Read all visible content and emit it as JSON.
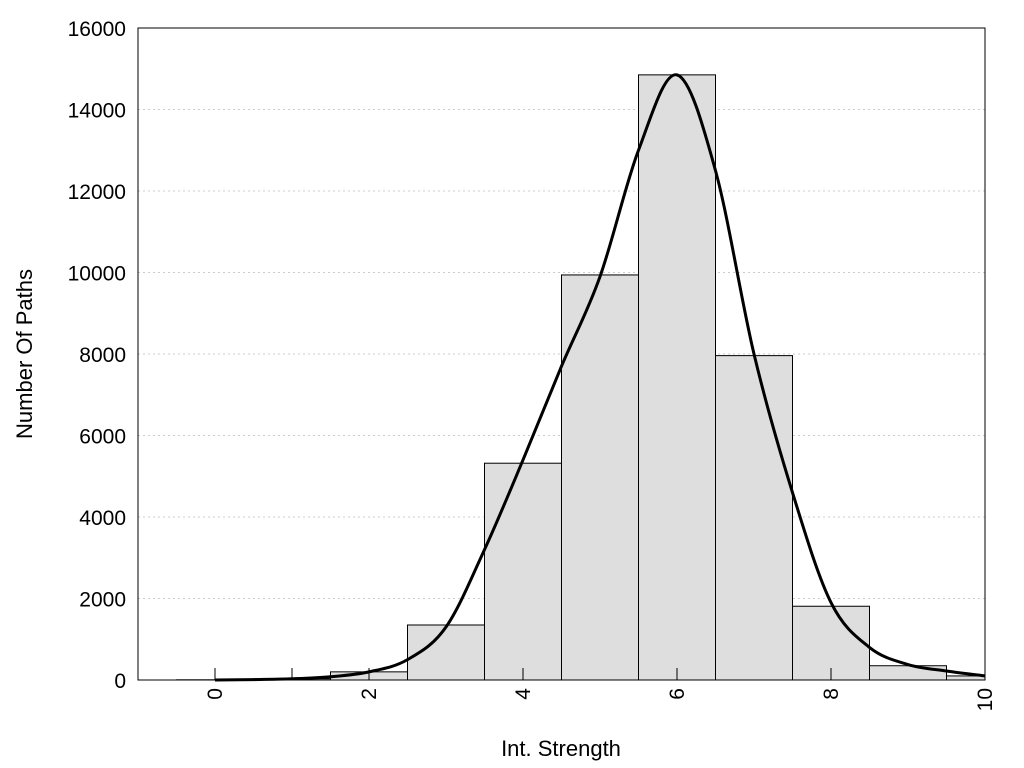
{
  "chart_data": {
    "type": "bar",
    "title": "",
    "xlabel": "Int. Strength",
    "ylabel": "Number Of Paths",
    "xlim": [
      -1,
      10
    ],
    "ylim": [
      0,
      16000
    ],
    "xticks": [
      0,
      2,
      4,
      6,
      8,
      10
    ],
    "yticks": [
      0,
      2000,
      4000,
      6000,
      8000,
      10000,
      12000,
      14000,
      16000
    ],
    "grid": "horizontal dotted",
    "legend": "none",
    "bar_width": 1,
    "bins": [
      {
        "x": 0,
        "value": 5
      },
      {
        "x": 1,
        "value": 30
      },
      {
        "x": 2,
        "value": 200
      },
      {
        "x": 3,
        "value": 1350
      },
      {
        "x": 4,
        "value": 5320
      },
      {
        "x": 5,
        "value": 9940
      },
      {
        "x": 6,
        "value": 14850
      },
      {
        "x": 7,
        "value": 7960
      },
      {
        "x": 8,
        "value": 1810
      },
      {
        "x": 9,
        "value": 350
      },
      {
        "x": 10,
        "value": 100
      }
    ],
    "density_curve": [
      [
        0,
        0
      ],
      [
        0.5,
        10
      ],
      [
        1,
        30
      ],
      [
        1.5,
        80
      ],
      [
        2,
        200
      ],
      [
        2.5,
        500
      ],
      [
        3,
        1300
      ],
      [
        3.5,
        3200
      ],
      [
        4,
        5400
      ],
      [
        4.5,
        7700
      ],
      [
        5,
        9900
      ],
      [
        5.5,
        13000
      ],
      [
        6,
        14850
      ],
      [
        6.5,
        12500
      ],
      [
        7,
        8000
      ],
      [
        7.5,
        4600
      ],
      [
        8,
        1900
      ],
      [
        8.5,
        800
      ],
      [
        9,
        380
      ],
      [
        9.5,
        220
      ],
      [
        10,
        100
      ]
    ],
    "colors": {
      "bar_fill": "#dedede",
      "bar_stroke": "#000000",
      "curve": "#000000",
      "grid": "#cccccc"
    }
  }
}
